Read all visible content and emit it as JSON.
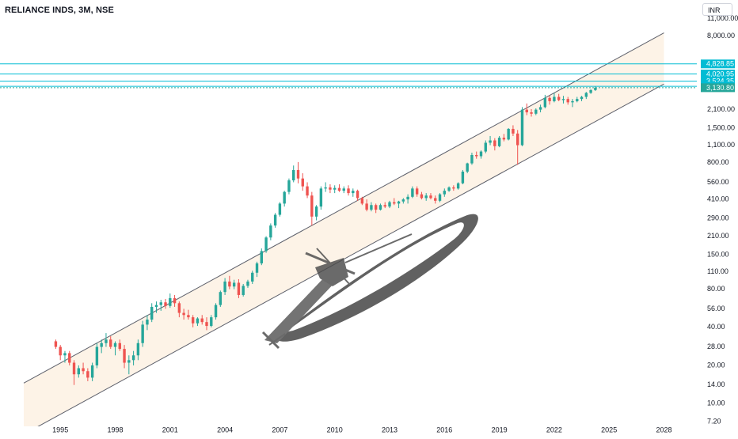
{
  "symbol_title": "RELIANCE INDS, 3M, NSE",
  "currency": "INR",
  "colors": {
    "up": "#26a69a",
    "down": "#ef5350",
    "channel_fill": "#fdf3e7",
    "channel_line": "#5d606b",
    "level_line": "#00bcd4",
    "level_label_bg": "#00bcd4",
    "last_price_bg": "#26a69a",
    "axis_text": "#131722"
  },
  "chart_data": {
    "type": "candlestick",
    "scale": "log",
    "ylim": [
      6.5,
      13000
    ],
    "xlim": [
      1992.5,
      2029.5
    ],
    "y_ticks": [
      "11,000.00",
      "8,000.00",
      "2,100.00",
      "1,500.00",
      "1,100.00",
      "800.00",
      "560.00",
      "410.00",
      "290.00",
      "210.00",
      "150.00",
      "110.00",
      "80.00",
      "56.00",
      "40.00",
      "28.00",
      "20.00",
      "14.00",
      "10.00",
      "7.20"
    ],
    "y_tick_values": [
      11000,
      8000,
      2100,
      1500,
      1100,
      800,
      560,
      410,
      290,
      210,
      150,
      110,
      80,
      56,
      40,
      28,
      20,
      14,
      10,
      7.2
    ],
    "x_ticks": [
      "1995",
      "1998",
      "2001",
      "2004",
      "2007",
      "2010",
      "2013",
      "2016",
      "2019",
      "2022",
      "2025",
      "2028"
    ],
    "x_tick_values": [
      1995,
      1998,
      2001,
      2004,
      2007,
      2010,
      2013,
      2016,
      2019,
      2022,
      2025,
      2028
    ],
    "horizontal_levels": [
      {
        "value": 4828.85,
        "label": "4,828.85"
      },
      {
        "value": 4020.95,
        "label": "4,020.95"
      },
      {
        "value": 3524.35,
        "label": "3,524.35"
      },
      {
        "value": 3210.9,
        "label": "3,210.90"
      }
    ],
    "last_price": {
      "value": 3130.8,
      "label": "3,130.80"
    },
    "channel": {
      "upper": [
        [
          1993.0,
          14.5
        ],
        [
          2028.0,
          8500
        ]
      ],
      "lower": [
        [
          1993.0,
          5.7
        ],
        [
          2028.0,
          3350
        ]
      ]
    },
    "candles": [
      [
        1994.75,
        31,
        32,
        27,
        28
      ],
      [
        1995.0,
        28,
        29,
        22,
        24
      ],
      [
        1995.25,
        24,
        26,
        21,
        25
      ],
      [
        1995.5,
        25,
        26,
        20,
        21
      ],
      [
        1995.75,
        21,
        22,
        14,
        17
      ],
      [
        1996.0,
        17,
        20,
        16,
        19
      ],
      [
        1996.25,
        19,
        21,
        17,
        18
      ],
      [
        1996.5,
        18,
        19,
        15,
        16
      ],
      [
        1996.75,
        16,
        21,
        15,
        20
      ],
      [
        1997.0,
        20,
        30,
        19,
        28
      ],
      [
        1997.25,
        28,
        32,
        25,
        30
      ],
      [
        1997.5,
        30,
        36,
        28,
        32
      ],
      [
        1997.75,
        32,
        34,
        27,
        28
      ],
      [
        1998.0,
        28,
        31,
        24,
        30
      ],
      [
        1998.25,
        30,
        32,
        26,
        27
      ],
      [
        1998.5,
        27,
        29,
        19,
        21
      ],
      [
        1998.75,
        21,
        24,
        17,
        22
      ],
      [
        1999.0,
        22,
        26,
        20,
        24
      ],
      [
        1999.25,
        24,
        32,
        22,
        30
      ],
      [
        1999.5,
        30,
        45,
        28,
        42
      ],
      [
        1999.75,
        42,
        50,
        38,
        46
      ],
      [
        2000.0,
        46,
        62,
        44,
        58
      ],
      [
        2000.25,
        58,
        64,
        52,
        60
      ],
      [
        2000.5,
        60,
        66,
        54,
        63
      ],
      [
        2000.75,
        63,
        67,
        56,
        59
      ],
      [
        2001.0,
        59,
        74,
        57,
        68
      ],
      [
        2001.25,
        68,
        72,
        58,
        62
      ],
      [
        2001.5,
        62,
        64,
        48,
        52
      ],
      [
        2001.75,
        52,
        56,
        46,
        50
      ],
      [
        2002.0,
        50,
        55,
        46,
        48
      ],
      [
        2002.25,
        48,
        50,
        40,
        43
      ],
      [
        2002.5,
        43,
        48,
        41,
        47
      ],
      [
        2002.75,
        47,
        50,
        42,
        44
      ],
      [
        2003.0,
        44,
        48,
        38,
        41
      ],
      [
        2003.25,
        41,
        50,
        40,
        48
      ],
      [
        2003.5,
        48,
        62,
        46,
        60
      ],
      [
        2003.75,
        60,
        78,
        58,
        76
      ],
      [
        2004.0,
        76,
        98,
        72,
        92
      ],
      [
        2004.25,
        92,
        102,
        80,
        84
      ],
      [
        2004.5,
        84,
        95,
        80,
        90
      ],
      [
        2004.75,
        90,
        96,
        68,
        72
      ],
      [
        2005.0,
        72,
        88,
        70,
        85
      ],
      [
        2005.25,
        85,
        95,
        82,
        92
      ],
      [
        2005.5,
        92,
        112,
        88,
        108
      ],
      [
        2005.75,
        108,
        132,
        100,
        128
      ],
      [
        2006.0,
        128,
        168,
        124,
        160
      ],
      [
        2006.25,
        160,
        210,
        155,
        205
      ],
      [
        2006.5,
        205,
        265,
        195,
        255
      ],
      [
        2006.75,
        255,
        320,
        245,
        310
      ],
      [
        2007.0,
        310,
        390,
        300,
        380
      ],
      [
        2007.25,
        380,
        480,
        360,
        470
      ],
      [
        2007.5,
        470,
        600,
        450,
        580
      ],
      [
        2007.75,
        580,
        760,
        560,
        700
      ],
      [
        2008.0,
        700,
        810,
        550,
        600
      ],
      [
        2008.25,
        600,
        660,
        480,
        520
      ],
      [
        2008.5,
        520,
        560,
        420,
        440
      ],
      [
        2008.75,
        440,
        470,
        255,
        300
      ],
      [
        2009.0,
        300,
        370,
        280,
        360
      ],
      [
        2009.25,
        360,
        520,
        340,
        500
      ],
      [
        2009.5,
        500,
        560,
        470,
        510
      ],
      [
        2009.75,
        510,
        540,
        460,
        490
      ],
      [
        2010.0,
        490,
        530,
        460,
        505
      ],
      [
        2010.25,
        505,
        540,
        470,
        480
      ],
      [
        2010.5,
        480,
        520,
        460,
        500
      ],
      [
        2010.75,
        500,
        530,
        440,
        460
      ],
      [
        2011.0,
        460,
        500,
        430,
        480
      ],
      [
        2011.25,
        480,
        490,
        400,
        420
      ],
      [
        2011.5,
        420,
        430,
        370,
        380
      ],
      [
        2011.75,
        380,
        410,
        330,
        340
      ],
      [
        2012.0,
        340,
        390,
        330,
        370
      ],
      [
        2012.25,
        370,
        380,
        320,
        340
      ],
      [
        2012.5,
        340,
        380,
        335,
        370
      ],
      [
        2012.75,
        370,
        390,
        350,
        360
      ],
      [
        2013.0,
        360,
        400,
        350,
        390
      ],
      [
        2013.25,
        390,
        420,
        370,
        380
      ],
      [
        2013.5,
        380,
        400,
        350,
        395
      ],
      [
        2013.75,
        395,
        420,
        380,
        410
      ],
      [
        2014.0,
        410,
        450,
        380,
        430
      ],
      [
        2014.25,
        430,
        520,
        420,
        500
      ],
      [
        2014.5,
        500,
        520,
        430,
        450
      ],
      [
        2014.75,
        450,
        470,
        410,
        420
      ],
      [
        2015.0,
        420,
        460,
        400,
        440
      ],
      [
        2015.25,
        440,
        460,
        410,
        420
      ],
      [
        2015.5,
        420,
        440,
        380,
        400
      ],
      [
        2015.75,
        400,
        460,
        390,
        450
      ],
      [
        2016.0,
        450,
        500,
        430,
        480
      ],
      [
        2016.25,
        480,
        520,
        470,
        510
      ],
      [
        2016.5,
        510,
        530,
        480,
        500
      ],
      [
        2016.75,
        500,
        560,
        490,
        550
      ],
      [
        2017.0,
        550,
        700,
        540,
        680
      ],
      [
        2017.25,
        680,
        800,
        660,
        790
      ],
      [
        2017.5,
        790,
        960,
        770,
        920
      ],
      [
        2017.75,
        920,
        980,
        860,
        900
      ],
      [
        2018.0,
        900,
        1000,
        860,
        980
      ],
      [
        2018.25,
        980,
        1200,
        950,
        1150
      ],
      [
        2018.5,
        1150,
        1300,
        1100,
        1200
      ],
      [
        2018.75,
        1200,
        1250,
        1000,
        1080
      ],
      [
        2019.0,
        1080,
        1300,
        1060,
        1260
      ],
      [
        2019.25,
        1260,
        1350,
        1180,
        1220
      ],
      [
        2019.5,
        1220,
        1500,
        1200,
        1480
      ],
      [
        2019.75,
        1480,
        1580,
        1300,
        1360
      ],
      [
        2020.0,
        1360,
        1450,
        770,
        1100
      ],
      [
        2020.25,
        1100,
        2200,
        1080,
        2100
      ],
      [
        2020.5,
        2100,
        2350,
        1900,
        2000
      ],
      [
        2020.75,
        2000,
        2120,
        1850,
        1950
      ],
      [
        2021.0,
        1950,
        2150,
        1900,
        2100
      ],
      [
        2021.25,
        2100,
        2300,
        2000,
        2200
      ],
      [
        2021.5,
        2200,
        2750,
        2150,
        2600
      ],
      [
        2021.75,
        2600,
        2700,
        2300,
        2450
      ],
      [
        2022.0,
        2450,
        2850,
        2400,
        2650
      ],
      [
        2022.25,
        2650,
        2800,
        2450,
        2500
      ],
      [
        2022.5,
        2500,
        2700,
        2350,
        2550
      ],
      [
        2022.75,
        2550,
        2650,
        2300,
        2400
      ],
      [
        2023.0,
        2400,
        2550,
        2200,
        2450
      ],
      [
        2023.25,
        2450,
        2650,
        2400,
        2550
      ],
      [
        2023.5,
        2550,
        2700,
        2450,
        2650
      ],
      [
        2023.75,
        2650,
        2900,
        2550,
        2850
      ],
      [
        2024.0,
        2850,
        3050,
        2800,
        3000
      ],
      [
        2024.25,
        3000,
        3200,
        2950,
        3130.8
      ]
    ]
  }
}
